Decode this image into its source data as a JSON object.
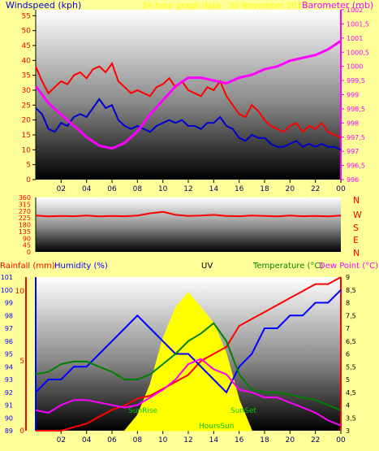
{
  "header": {
    "title": "24 hour graph data - 30 November 2017",
    "left_label": "Windspeed (kph)",
    "right_label": "Barometer (mb)"
  },
  "wind_dir_letters": [
    "N",
    "W",
    "S",
    "E",
    "N"
  ],
  "bottom_labels": {
    "rain": "Rainfall (mm)",
    "humidity": "Humidity (%)",
    "uv": "UV",
    "temperature": "Temperature (°C)",
    "dewpoint": "Dew Point (°C)",
    "sunrise": "SunRise",
    "sunset": "SunSet",
    "hours_sun": "HoursSun"
  },
  "colors": {
    "wind": "#ff0000",
    "gust_avg": "#0000cc",
    "pressure": "#ff00ff",
    "direction": "#ff0000",
    "rain": "#ff0000",
    "humidity": "#0000ff",
    "uv": "#ffff00",
    "temperature": "#008000",
    "dewpoint": "#ff00ff",
    "sun": "#00cc00"
  },
  "chart_data": [
    {
      "type": "line",
      "title": "24 hour graph data - 30 November 2017",
      "x_ticks": [
        "02",
        "04",
        "06",
        "08",
        "10",
        "12",
        "14",
        "16",
        "18",
        "20",
        "22",
        "00"
      ],
      "xlim": [
        0,
        24
      ],
      "y_left": {
        "label": "Windspeed (kph)",
        "ylim": [
          0,
          57
        ],
        "ticks": [
          0,
          5,
          10,
          15,
          20,
          25,
          30,
          35,
          40,
          45,
          50,
          55
        ]
      },
      "y_right": {
        "label": "Barometer (mb)",
        "ylim": [
          996,
          1002
        ],
        "ticks": [
          "996",
          "996,5",
          "997",
          "997,5",
          "998",
          "998,5",
          "999",
          "999,5",
          "1000",
          "1000,5",
          "1001",
          "1001,5",
          "1002"
        ]
      },
      "series": [
        {
          "axis": "left",
          "x": [
            0,
            0.5,
            1,
            1.5,
            2,
            2.5,
            3,
            3.5,
            4,
            4.5,
            5,
            5.5,
            6,
            6.5,
            7,
            7.5,
            8,
            8.5,
            9,
            9.5,
            10,
            10.5,
            11,
            11.5,
            12,
            12.5,
            13,
            13.5,
            14,
            14.5,
            15,
            15.5,
            16,
            16.5,
            17,
            17.5,
            18,
            18.5,
            19,
            19.5,
            20,
            20.5,
            21,
            21.5,
            22,
            22.5,
            23,
            23.5,
            24
          ],
          "y": [
            38,
            33,
            29,
            31,
            33,
            32,
            35,
            36,
            34,
            37,
            38,
            36,
            39,
            33,
            31,
            29,
            30,
            29,
            28,
            31,
            32,
            34,
            31,
            33,
            30,
            29,
            28,
            31,
            30,
            33,
            28,
            25,
            22,
            21,
            25,
            23,
            20,
            18,
            17,
            16,
            18,
            19,
            16,
            18,
            17,
            19,
            16,
            15,
            14
          ]
        },
        {
          "axis": "left",
          "x": [
            0,
            0.5,
            1,
            1.5,
            2,
            2.5,
            3,
            3.5,
            4,
            4.5,
            5,
            5.5,
            6,
            6.5,
            7,
            7.5,
            8,
            8.5,
            9,
            9.5,
            10,
            10.5,
            11,
            11.5,
            12,
            12.5,
            13,
            13.5,
            14,
            14.5,
            15,
            15.5,
            16,
            16.5,
            17,
            17.5,
            18,
            18.5,
            19,
            19.5,
            20,
            20.5,
            21,
            21.5,
            22,
            22.5,
            23,
            23.5,
            24
          ],
          "y": [
            24,
            22,
            17,
            16,
            19,
            18,
            21,
            22,
            21,
            24,
            27,
            24,
            25,
            20,
            18,
            17,
            18,
            17,
            16,
            18,
            19,
            20,
            19,
            20,
            18,
            18,
            17,
            19,
            19,
            21,
            18,
            17,
            14,
            13,
            15,
            14,
            14,
            12,
            11,
            11,
            12,
            13,
            11,
            12,
            11,
            12,
            11,
            11,
            10
          ]
        },
        {
          "axis": "right",
          "x": [
            0,
            1,
            2,
            3,
            4,
            5,
            6,
            7,
            8,
            9,
            10,
            11,
            12,
            13,
            14,
            15,
            16,
            17,
            18,
            19,
            20,
            21,
            22,
            23,
            24
          ],
          "y": [
            999.3,
            998.7,
            998.3,
            997.9,
            997.5,
            997.2,
            997.1,
            997.3,
            997.7,
            998.3,
            998.8,
            999.3,
            999.6,
            999.6,
            999.5,
            999.4,
            999.6,
            999.7,
            999.9,
            1000.0,
            1000.2,
            1000.3,
            1000.4,
            1000.6,
            1000.9
          ]
        }
      ]
    },
    {
      "type": "line",
      "title": "",
      "x_ticks": [
        "02",
        "04",
        "06",
        "08",
        "10",
        "12",
        "14",
        "16",
        "18",
        "20",
        "22",
        "00"
      ],
      "xlim": [
        0,
        24
      ],
      "y_left": {
        "ylim": [
          0,
          360
        ],
        "ticks": [
          0,
          45,
          90,
          135,
          180,
          225,
          270,
          315,
          360
        ]
      },
      "series": [
        {
          "axis": "left",
          "x": [
            0,
            1,
            2,
            3,
            4,
            5,
            6,
            7,
            8,
            9,
            10,
            11,
            12,
            13,
            14,
            15,
            16,
            17,
            18,
            19,
            20,
            21,
            22,
            23,
            24
          ],
          "y": [
            240,
            235,
            238,
            236,
            240,
            235,
            238,
            236,
            240,
            255,
            265,
            245,
            238,
            240,
            245,
            238,
            236,
            240,
            238,
            235,
            240,
            236,
            238,
            235,
            240
          ]
        }
      ]
    },
    {
      "type": "line",
      "title": "",
      "x_ticks": [
        "02",
        "04",
        "06",
        "08",
        "10",
        "12",
        "14",
        "16",
        "18",
        "20",
        "22",
        "00"
      ],
      "xlim": [
        0,
        24
      ],
      "y_rain": {
        "label": "Rainfall (mm)",
        "ylim": [
          0,
          11
        ],
        "ticks": [
          0,
          5,
          10
        ]
      },
      "y_humidity": {
        "label": "Humidity (%)",
        "ylim": [
          89,
          101
        ],
        "ticks": [
          89,
          90,
          91,
          92,
          93,
          94,
          95,
          96,
          97,
          98,
          99,
          100,
          101
        ]
      },
      "y_temp": {
        "label": "Temperature (°C)",
        "ylim": [
          3,
          9
        ],
        "ticks": [
          "3",
          "3,5",
          "4",
          "4,5",
          "5",
          "5,5",
          "6",
          "6,5",
          "7",
          "7,5",
          "8",
          "8,5",
          "9"
        ]
      },
      "series": [
        {
          "axis": "rain",
          "x": [
            0,
            2,
            4,
            5,
            6,
            7,
            8,
            9,
            10,
            11,
            12,
            13,
            14,
            15,
            16,
            17,
            18,
            19,
            20,
            21,
            22,
            23,
            24
          ],
          "y": [
            0,
            0,
            0.5,
            1.0,
            1.5,
            1.8,
            2.3,
            2.5,
            3.0,
            3.5,
            4.0,
            5.0,
            5.5,
            6.0,
            7.5,
            8.0,
            8.5,
            9.0,
            9.5,
            10.0,
            10.5,
            10.5,
            11
          ]
        },
        {
          "axis": "humidity",
          "x": [
            0,
            1,
            2,
            3,
            4,
            5,
            6,
            7,
            8,
            9,
            10,
            11,
            12,
            13,
            14,
            15,
            16,
            17,
            18,
            19,
            20,
            21,
            22,
            23,
            24
          ],
          "y": [
            92,
            93,
            93,
            94,
            94,
            95,
            96,
            97,
            98,
            97,
            96,
            95,
            95,
            94,
            93,
            92,
            94,
            95,
            97,
            97,
            98,
            98,
            99,
            99,
            100
          ]
        },
        {
          "axis": "temp",
          "x": [
            0,
            1,
            2,
            3,
            4,
            5,
            6,
            7,
            8,
            9,
            10,
            11,
            12,
            13,
            14,
            15,
            16,
            17,
            18,
            19,
            20,
            21,
            22,
            23,
            24
          ],
          "y": [
            5.2,
            5.3,
            5.6,
            5.7,
            5.7,
            5.5,
            5.3,
            5.0,
            5.0,
            5.2,
            5.6,
            6.0,
            6.5,
            6.8,
            7.2,
            6.5,
            5.2,
            4.6,
            4.5,
            4.5,
            4.4,
            4.3,
            4.2,
            4.0,
            3.8
          ]
        },
        {
          "axis": "temp",
          "x": [
            0,
            1,
            2,
            3,
            4,
            5,
            6,
            7,
            8,
            9,
            10,
            11,
            12,
            13,
            14,
            15,
            16,
            17,
            18,
            19,
            20,
            21,
            22,
            23,
            24
          ],
          "y": [
            3.8,
            3.7,
            4.0,
            4.2,
            4.2,
            4.1,
            4.0,
            3.9,
            4.0,
            4.3,
            4.6,
            5.0,
            5.6,
            5.8,
            5.4,
            5.2,
            4.6,
            4.5,
            4.3,
            4.3,
            4.1,
            3.9,
            3.7,
            3.4,
            3.2
          ]
        },
        {
          "axis": "uv",
          "x": [
            7,
            8,
            9,
            10,
            11,
            12,
            13,
            14,
            15,
            16,
            17
          ],
          "y": [
            0,
            1,
            3,
            6,
            8,
            9,
            8,
            7,
            5,
            2,
            0
          ]
        }
      ]
    }
  ]
}
